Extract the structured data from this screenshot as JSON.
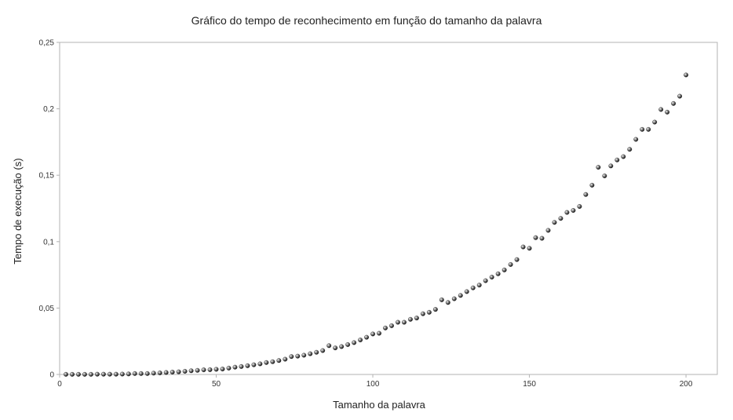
{
  "chart_data": {
    "type": "scatter",
    "title": "Gráfico do tempo de reconhecimento em função do tamanho da palavra",
    "xlabel": "Tamanho da palavra",
    "ylabel": "Tempo de execução (s)",
    "xlim": [
      0,
      210
    ],
    "ylim": [
      0,
      0.25
    ],
    "x_ticks": [
      0,
      50,
      100,
      150,
      200
    ],
    "x_tick_labels": [
      "0",
      "50",
      "100",
      "150",
      "200"
    ],
    "y_ticks": [
      0,
      0.05,
      0.1,
      0.15,
      0.2,
      0.25
    ],
    "y_tick_labels": [
      "0",
      "0,05",
      "0,1",
      "0,15",
      "0,2",
      "0,25"
    ],
    "grid": false,
    "legend": "none",
    "marker_color": "#222222",
    "series": [
      {
        "x": [
          2,
          4,
          6,
          8,
          10,
          12,
          14,
          16,
          18,
          20,
          22,
          24,
          26,
          28,
          30,
          32,
          34,
          36,
          38,
          40,
          42,
          44,
          46,
          48,
          50,
          52,
          54,
          56,
          58,
          60,
          62,
          64,
          66,
          68,
          70,
          72,
          74,
          76,
          78,
          80,
          82,
          84,
          86,
          88,
          90,
          92,
          94,
          96,
          98,
          100,
          102,
          104,
          106,
          108,
          110,
          112,
          114,
          116,
          118,
          120,
          122,
          124,
          126,
          128,
          130,
          132,
          134,
          136,
          138,
          140,
          142,
          144,
          146,
          148,
          150,
          152,
          154,
          156,
          158,
          160,
          162,
          164,
          166,
          168,
          170,
          172,
          174,
          176,
          178,
          180,
          182,
          184,
          186,
          188,
          190,
          192,
          194,
          196,
          198,
          200
        ],
        "y": [
          0.0001,
          0.0001,
          0.0001,
          0.0001,
          0.0001,
          0.0002,
          0.0002,
          0.0002,
          0.0002,
          0.0003,
          0.0004,
          0.0007,
          0.0007,
          0.0007,
          0.001,
          0.0012,
          0.0015,
          0.0018,
          0.002,
          0.0024,
          0.0028,
          0.0031,
          0.0035,
          0.0036,
          0.0039,
          0.0041,
          0.0048,
          0.0055,
          0.006,
          0.0066,
          0.0073,
          0.008,
          0.009,
          0.0096,
          0.0105,
          0.0115,
          0.0135,
          0.0138,
          0.0145,
          0.0156,
          0.0167,
          0.018,
          0.0217,
          0.02,
          0.021,
          0.0225,
          0.024,
          0.026,
          0.028,
          0.0305,
          0.031,
          0.035,
          0.0367,
          0.0393,
          0.0393,
          0.0415,
          0.0425,
          0.0457,
          0.0468,
          0.049,
          0.0562,
          0.0542,
          0.057,
          0.0595,
          0.0624,
          0.0652,
          0.0673,
          0.0706,
          0.0733,
          0.0758,
          0.0787,
          0.0828,
          0.0865,
          0.096,
          0.095,
          0.103,
          0.1025,
          0.1085,
          0.1145,
          0.1175,
          0.122,
          0.1235,
          0.1265,
          0.1355,
          0.1425,
          0.156,
          0.1495,
          0.157,
          0.1615,
          0.164,
          0.1695,
          0.177,
          0.1845,
          0.1845,
          0.19,
          0.1995,
          0.1975,
          0.204,
          0.2095,
          0.2255
        ]
      }
    ]
  }
}
